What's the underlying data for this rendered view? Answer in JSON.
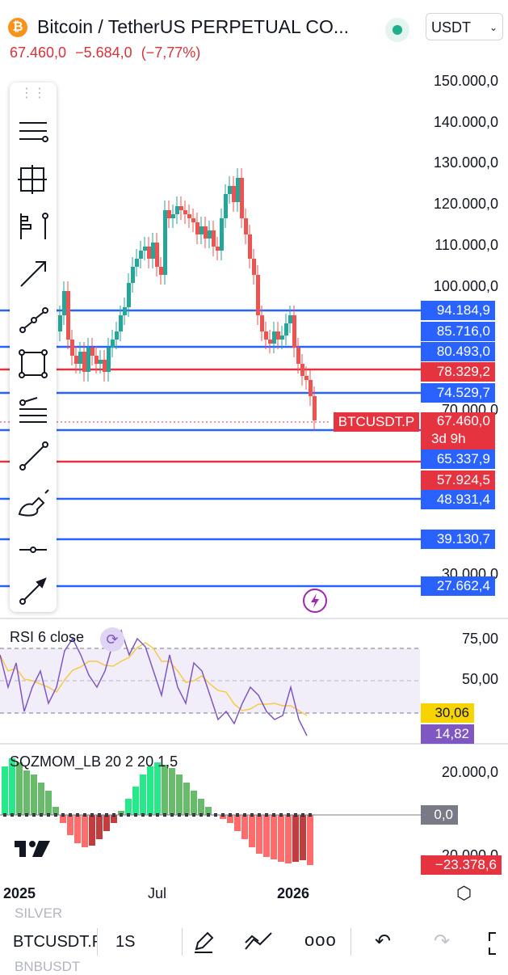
{
  "header": {
    "logo_letter": "₿",
    "title": "Bitcoin / TetherUS PERPETUAL CO...",
    "currency": "USDT",
    "price": "67.460,0",
    "change": "−5.684,0",
    "change_pct": "(−7,77%)"
  },
  "price_axis": [
    "150.000,0",
    "140.000,0",
    "130.000,0",
    "120.000,0",
    "110.000,0",
    "100.000,0",
    "70.000,0",
    "30.000,0"
  ],
  "level_tags": [
    {
      "label": "94.184,9",
      "color": "blue"
    },
    {
      "label": "85.716,0",
      "color": "blue"
    },
    {
      "label": "80.493,0",
      "color": "blue"
    },
    {
      "label": "78.329,2",
      "color": "red"
    },
    {
      "label": "74.529,7",
      "color": "blue"
    },
    {
      "label": "65.337,9",
      "color": "blue"
    },
    {
      "label": "57.924,5",
      "color": "red"
    },
    {
      "label": "48.931,4",
      "color": "blue"
    },
    {
      "label": "39.130,7",
      "color": "blue"
    },
    {
      "label": "27.662,4",
      "color": "blue"
    }
  ],
  "symbol_tag": "BTCUSDT.P",
  "last_price_tag": "67.460,0",
  "countdown": "3d 9h",
  "rsi": {
    "label": "RSI 6 close",
    "axis": [
      "75,00",
      "50,00"
    ],
    "ma_value": "30,06",
    "value": "14,82"
  },
  "sqz": {
    "label": "SQZMOM_LB 20 2 20 1,5",
    "axis": [
      "20.000,0",
      "-20.000,0"
    ],
    "zero_label": "0,0",
    "value": "−23.378,6"
  },
  "time_axis": [
    "2025",
    "Jul",
    "2026"
  ],
  "bottom_bar": {
    "ghost_top": "SILVER",
    "symbol": "BTCUSDT.P",
    "interval": "1S",
    "ghost_bottom": "BNBUSDT"
  },
  "colors": {
    "up": "#26a69a",
    "down": "#ef5350",
    "blue_line": "#2962ff",
    "red_line": "#e5343f",
    "rsi_line": "#7e57c2",
    "rsi_ma": "#f7c948"
  }
}
